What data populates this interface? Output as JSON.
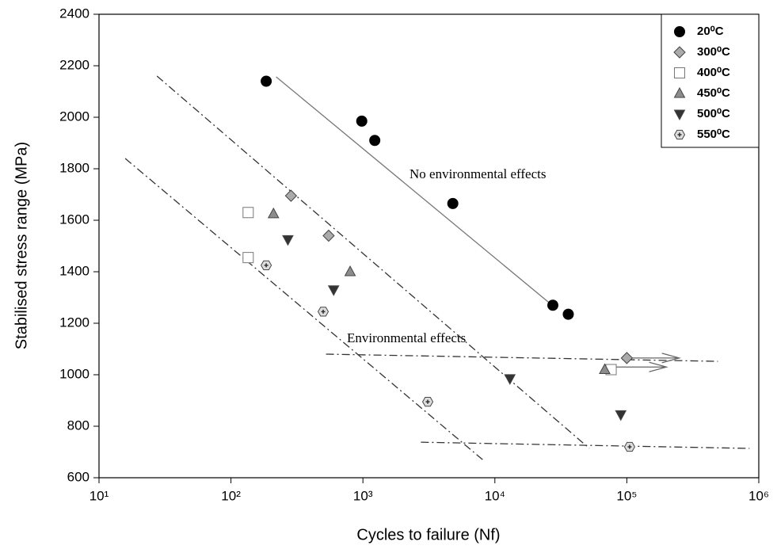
{
  "chart_data": {
    "type": "scatter",
    "xlabel": "Cycles to failure (Nf)",
    "ylabel": "Stabilised stress range (MPa)",
    "xscale": "log",
    "xlim": [
      10,
      1000000
    ],
    "ylim": [
      600,
      2400
    ],
    "xticks": [
      {
        "value": 10,
        "label": "10¹"
      },
      {
        "value": 100,
        "label": "10²"
      },
      {
        "value": 1000,
        "label": "10³"
      },
      {
        "value": 10000,
        "label": "10⁴"
      },
      {
        "value": 100000,
        "label": "10⁵"
      },
      {
        "value": 1000000,
        "label": "10⁶"
      }
    ],
    "yticks": [
      600,
      800,
      1000,
      1200,
      1400,
      1600,
      1800,
      2000,
      2200,
      2400
    ],
    "legend": "upper right",
    "annotations": [
      "No environmental effects",
      "Environmental effects"
    ],
    "series": [
      {
        "name": "20⁰C",
        "marker": "circle",
        "color": "#000000",
        "x": [
          185,
          980,
          1230,
          4800,
          27500,
          36000
        ],
        "values": [
          2140,
          1985,
          1910,
          1665,
          1270,
          1235
        ]
      },
      {
        "name": "300⁰C",
        "marker": "diamond",
        "color": "#aaaaaa",
        "x": [
          285,
          550,
          100000
        ],
        "values": [
          1695,
          1540,
          1065
        ]
      },
      {
        "name": "400⁰C",
        "marker": "square",
        "color": "#ffffff",
        "x": [
          135,
          135,
          76000
        ],
        "values": [
          1630,
          1455,
          1020
        ]
      },
      {
        "name": "450⁰C",
        "marker": "triangle-up",
        "color": "#8c8c8c",
        "x": [
          210,
          800,
          68000
        ],
        "values": [
          1625,
          1400,
          1020
        ]
      },
      {
        "name": "500⁰C",
        "marker": "triangle-down",
        "color": "#333333",
        "x": [
          270,
          600,
          13000,
          90000
        ],
        "values": [
          1525,
          1330,
          985,
          845
        ]
      },
      {
        "name": "550⁰C",
        "marker": "hexagon",
        "color": "#dddddd",
        "x": [
          185,
          500,
          3100,
          105000
        ],
        "values": [
          1425,
          1245,
          895,
          720
        ]
      }
    ],
    "lines": [
      {
        "style": "solid",
        "x": [
          220,
          29000
        ],
        "values": [
          2157,
          1258
        ]
      },
      {
        "style": "dashdot",
        "x": [
          27.5,
          52000
        ],
        "values": [
          2160,
          714
        ]
      },
      {
        "style": "dashdot",
        "x": [
          15.8,
          8300
        ],
        "values": [
          1840,
          665
        ]
      },
      {
        "style": "dashdot",
        "x": [
          525,
          490000
        ],
        "values": [
          1080,
          1052
        ]
      },
      {
        "style": "dashdot",
        "x": [
          2750,
          850000
        ],
        "values": [
          738,
          714
        ]
      }
    ],
    "arrows": [
      {
        "x": [
          105000,
          250000
        ],
        "values": [
          1065,
          1065
        ]
      },
      {
        "x": [
          80000,
          200000
        ],
        "values": [
          1030,
          1030
        ]
      }
    ]
  }
}
